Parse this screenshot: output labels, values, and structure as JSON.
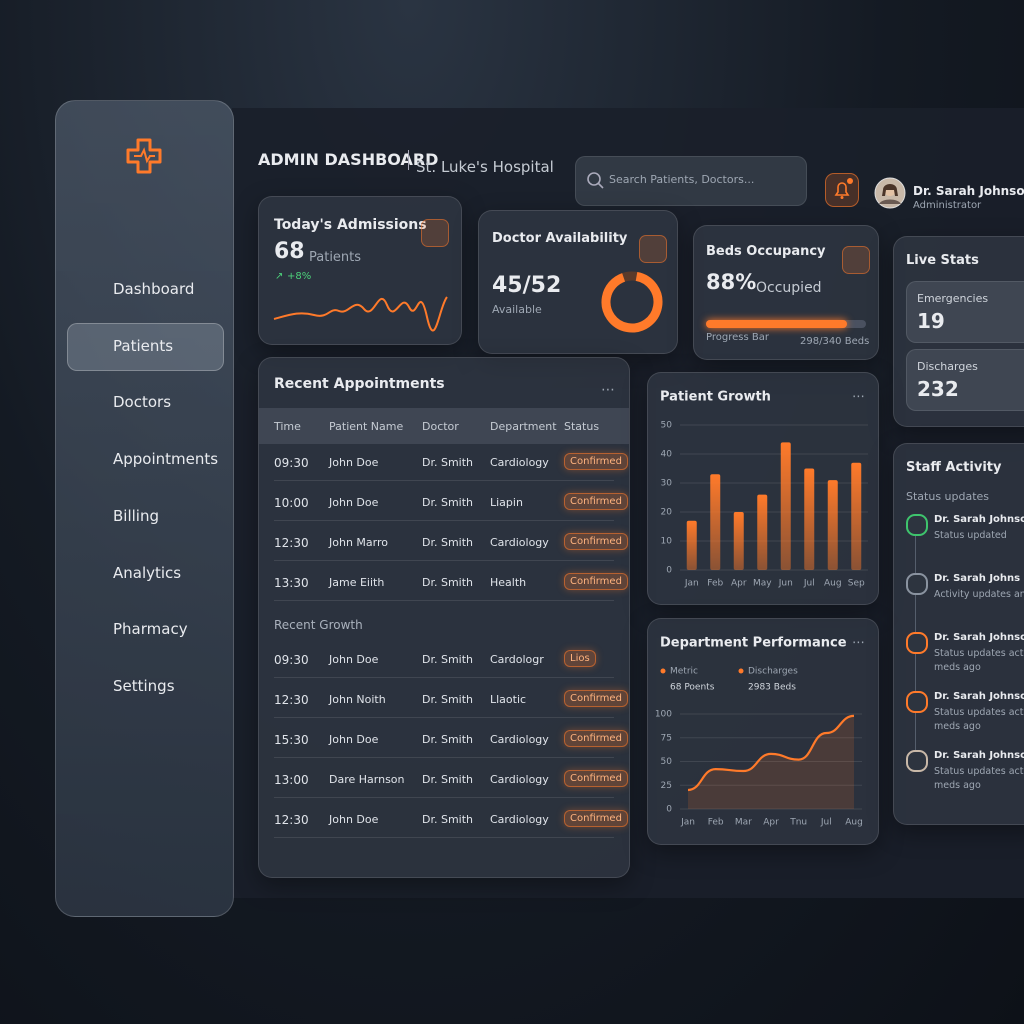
{
  "header": {
    "title": "ADMIN DASHBOARD",
    "subtitle": "St. Luke's Hospital",
    "search_placeholder": "Search Patients, Doctors...",
    "user_name": "Dr. Sarah Johnson",
    "user_role": "Administrator"
  },
  "sidebar": {
    "items": [
      "Dashboard",
      "Patients",
      "Doctors",
      "Appointments",
      "Billing",
      "Analytics",
      "Pharmacy",
      "Settings"
    ],
    "active": 1
  },
  "admissions": {
    "title": "Today's Admissions",
    "value": "68",
    "unit": "Patients",
    "change": "+8%"
  },
  "doctor_availability": {
    "title": "Doctor Availability",
    "value": "45/52",
    "caption": "Available"
  },
  "beds": {
    "title": "Beds Occupancy",
    "occupancy": {
      "value": 88,
      "label": "88%"
    },
    "caption": "Occupied",
    "bar_label": "Progress Bar",
    "bar_detail": "298/340 Beds"
  },
  "live_stats": {
    "title": "Live Stats",
    "items": [
      {
        "label": "Emergencies",
        "value": "19"
      },
      {
        "label": "Discharges",
        "value": "232"
      }
    ]
  },
  "appointments": {
    "title": "Recent Appointments",
    "columns": [
      "Time",
      "Patient Name",
      "Doctor",
      "Department",
      "Status"
    ],
    "rows": [
      [
        "09:30",
        "John Doe",
        "Dr. Smith",
        "Cardiology",
        "Confirmed"
      ],
      [
        "10:00",
        "John Doe",
        "Dr. Smith",
        "Liapin",
        "Confirmed"
      ],
      [
        "12:30",
        "John Marro",
        "Dr. Smith",
        "Cardiology",
        "Confirmed"
      ],
      [
        "13:30",
        "Jame Eiith",
        "Dr. Smith",
        "Health",
        "Confirmed"
      ]
    ],
    "section": "Recent Growth",
    "section_rows": [
      [
        "09:30",
        "John Doe",
        "Dr. Smith",
        "Cardologr",
        "Lios"
      ],
      [
        "12:30",
        "John Noith",
        "Dr. Smith",
        "Llaotic",
        "Confirmed"
      ],
      [
        "15:30",
        "John Doe",
        "Dr. Smith",
        "Cardiology",
        "Confirmed"
      ],
      [
        "13:00",
        "Dare Harnson",
        "Dr. Smith",
        "Cardiology",
        "Confirmed"
      ],
      [
        "12:30",
        "John Doe",
        "Dr. Smith",
        "Cardiology",
        "Confirmed"
      ]
    ]
  },
  "chart_data": [
    {
      "type": "bar",
      "title": "Patient Growth",
      "categories": [
        "Jan",
        "Feb",
        "Apr",
        "May",
        "Jun",
        "Jul",
        "Aug",
        "Sep"
      ],
      "values": [
        17,
        33,
        20,
        26,
        44,
        35,
        31,
        37
      ],
      "color": "#ff7a2a",
      "ylim": [
        0,
        50
      ],
      "yticks": [
        0,
        10,
        20,
        30,
        40,
        50
      ],
      "grid": true
    },
    {
      "type": "line",
      "title": "Department Performance",
      "legend": [
        {
          "label": "Metric",
          "detail": "68 Poents"
        },
        {
          "label": "Discharges",
          "detail": "2983 Beds"
        }
      ],
      "categories": [
        "Jan",
        "Feb",
        "Mar",
        "Apr",
        "Tnu",
        "Jul",
        "Aug"
      ],
      "values": [
        20,
        42,
        40,
        58,
        52,
        80,
        98
      ],
      "color": "#ff7a2a",
      "ylim": [
        0,
        100
      ],
      "yticks": [
        0,
        25,
        50,
        75,
        100
      ],
      "grid": true
    }
  ],
  "staff_activity": {
    "title": "Staff Activity",
    "subtitle": "Status updates",
    "items": [
      {
        "name": "Dr. Sarah Johnson",
        "detail": "Status updated"
      },
      {
        "name": "Dr. Sarah Johns",
        "detail": "Activity updates and"
      },
      {
        "name": "Dr. Sarah Johnson",
        "detail": "Status updates activity",
        "time": "meds ago"
      },
      {
        "name": "Dr. Sarah Johnson",
        "detail": "Status updates activity",
        "time": "meds ago"
      },
      {
        "name": "Dr. Sarah Johnson",
        "detail": "Status updates activity",
        "time": "meds ago"
      }
    ]
  }
}
